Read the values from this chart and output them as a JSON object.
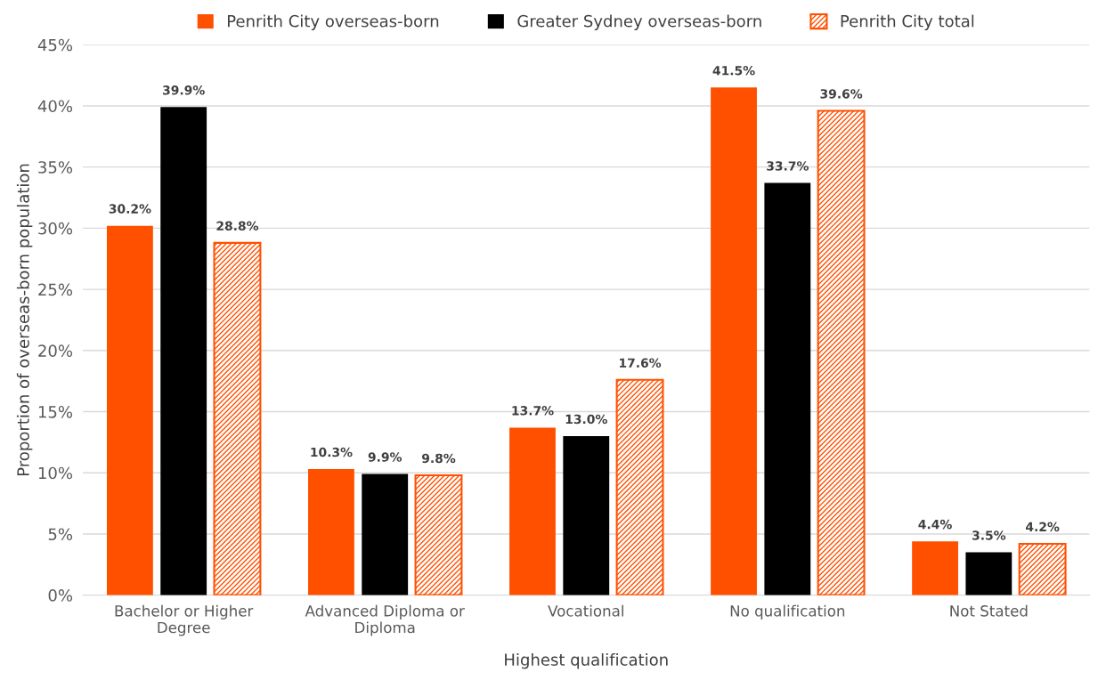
{
  "chart_data": {
    "type": "bar",
    "xlabel": "Highest qualification",
    "ylabel": "Proportion of overseas-born population",
    "categories": [
      "Bachelor or Higher\nDegree",
      "Advanced Diploma or\nDiploma",
      "Vocational",
      "No qualification",
      "Not Stated"
    ],
    "series": [
      {
        "name": "Penrith City overseas-born",
        "color": "#ff5000",
        "values": [
          30.2,
          10.3,
          13.7,
          41.5,
          4.4
        ],
        "value_labels": [
          "30.2%",
          "10.3%",
          "13.7%",
          "41.5%",
          "4.4%"
        ]
      },
      {
        "name": "Greater Sydney overseas-born",
        "color": "#000000",
        "values": [
          39.9,
          9.9,
          13.0,
          33.7,
          3.5
        ],
        "value_labels": [
          "39.9%",
          "9.9%",
          "13.0%",
          "33.7%",
          "3.5%"
        ]
      },
      {
        "name": "Penrith City total",
        "color": "#ff5000",
        "values": [
          28.8,
          9.8,
          17.6,
          39.6,
          4.2
        ],
        "value_labels": [
          "28.8%",
          "9.8%",
          "17.6%",
          "39.6%",
          "4.2%"
        ]
      }
    ],
    "ylim": [
      0,
      45
    ],
    "yticks": [
      {
        "value": 0,
        "label": "0%"
      },
      {
        "value": 5,
        "label": "5%"
      },
      {
        "value": 10,
        "label": "10%"
      },
      {
        "value": 15,
        "label": "15%"
      },
      {
        "value": 20,
        "label": "20%"
      },
      {
        "value": 25,
        "label": "25%"
      },
      {
        "value": 30,
        "label": "30%"
      },
      {
        "value": 35,
        "label": "35%"
      },
      {
        "value": 40,
        "label": "40%"
      },
      {
        "value": 45,
        "label": "45%"
      }
    ],
    "grid": "y",
    "legend": "top"
  }
}
